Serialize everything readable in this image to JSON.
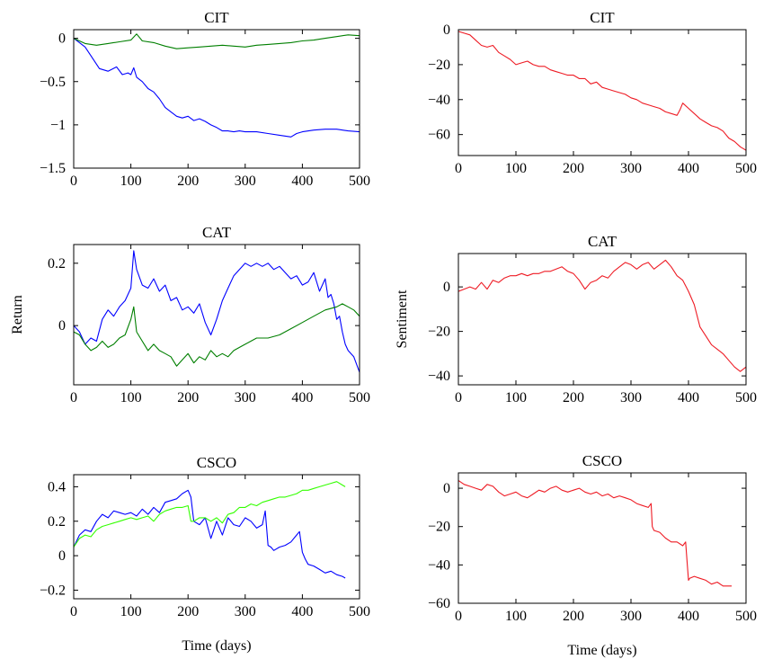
{
  "figure": {
    "xlabel": "Time (days)"
  },
  "colors": {
    "blue": "#0000ff",
    "dark_green": "#007f00",
    "light_green": "#33ff00",
    "red": "#ee1b24"
  },
  "chart_data": [
    {
      "type": "line",
      "title": "CIT",
      "xlabel": "",
      "ylabel": "",
      "xlim": [
        0,
        500
      ],
      "ylim": [
        -1.5,
        0.1
      ],
      "xticks": [
        "0",
        "100",
        "200",
        "300",
        "400",
        "500"
      ],
      "yticks": [
        {
          "v": 0,
          "label": "0"
        },
        {
          "v": -0.5,
          "label": "−0.5"
        },
        {
          "v": -1,
          "label": "−1"
        },
        {
          "v": -1.5,
          "label": "−1.5"
        }
      ],
      "series": [
        {
          "color": "#0000ff",
          "x": [
            0,
            10,
            20,
            30,
            45,
            60,
            75,
            85,
            95,
            100,
            105,
            110,
            120,
            130,
            140,
            150,
            160,
            170,
            180,
            190,
            200,
            210,
            220,
            230,
            240,
            250,
            260,
            270,
            280,
            290,
            300,
            320,
            340,
            360,
            380,
            390,
            400,
            420,
            440,
            460,
            480,
            500
          ],
          "y": [
            0,
            -0.05,
            -0.1,
            -0.2,
            -0.35,
            -0.38,
            -0.33,
            -0.42,
            -0.4,
            -0.42,
            -0.34,
            -0.45,
            -0.5,
            -0.58,
            -0.62,
            -0.7,
            -0.8,
            -0.85,
            -0.9,
            -0.92,
            -0.9,
            -0.95,
            -0.93,
            -0.96,
            -1,
            -1.03,
            -1.07,
            -1.07,
            -1.08,
            -1.07,
            -1.08,
            -1.08,
            -1.1,
            -1.12,
            -1.14,
            -1.1,
            -1.08,
            -1.06,
            -1.05,
            -1.05,
            -1.07,
            -1.08
          ]
        },
        {
          "color": "#007f00",
          "x": [
            0,
            20,
            40,
            60,
            80,
            100,
            110,
            120,
            140,
            160,
            180,
            200,
            220,
            240,
            260,
            280,
            300,
            320,
            340,
            360,
            380,
            400,
            420,
            440,
            460,
            480,
            500
          ],
          "y": [
            0,
            -0.06,
            -0.08,
            -0.06,
            -0.04,
            -0.02,
            0.05,
            -0.03,
            -0.05,
            -0.09,
            -0.12,
            -0.11,
            -0.1,
            -0.09,
            -0.08,
            -0.09,
            -0.1,
            -0.08,
            -0.07,
            -0.06,
            -0.05,
            -0.03,
            -0.02,
            0,
            0.02,
            0.04,
            0.03
          ]
        }
      ]
    },
    {
      "type": "line",
      "title": "CIT",
      "xlabel": "",
      "ylabel": "",
      "xlim": [
        0,
        500
      ],
      "ylim": [
        -72,
        0
      ],
      "xticks": [
        "0",
        "100",
        "200",
        "300",
        "400",
        "500"
      ],
      "yticks": [
        {
          "v": 0,
          "label": "0"
        },
        {
          "v": -20,
          "label": "−20"
        },
        {
          "v": -40,
          "label": "−40"
        },
        {
          "v": -60,
          "label": "−60"
        }
      ],
      "series": [
        {
          "color": "#ee1b24",
          "x": [
            0,
            10,
            20,
            30,
            40,
            50,
            60,
            70,
            80,
            90,
            100,
            110,
            120,
            130,
            140,
            150,
            160,
            170,
            180,
            190,
            200,
            210,
            220,
            230,
            240,
            250,
            260,
            270,
            280,
            290,
            300,
            310,
            320,
            330,
            340,
            350,
            360,
            370,
            380,
            385,
            390,
            400,
            410,
            420,
            430,
            440,
            450,
            460,
            470,
            480,
            490,
            500
          ],
          "y": [
            -1,
            -2,
            -3,
            -6,
            -9,
            -10,
            -9,
            -13,
            -15,
            -17,
            -20,
            -19,
            -18,
            -20,
            -21,
            -21,
            -23,
            -24,
            -25,
            -26,
            -26,
            -28,
            -28,
            -31,
            -30,
            -33,
            -34,
            -35,
            -36,
            -37,
            -39,
            -40,
            -42,
            -43,
            -44,
            -45,
            -47,
            -48,
            -49,
            -46,
            -42,
            -45,
            -48,
            -51,
            -53,
            -55,
            -56,
            -58,
            -62,
            -64,
            -67,
            -69
          ]
        }
      ]
    },
    {
      "type": "line",
      "title": "CAT",
      "xlabel": "",
      "ylabel": "Return",
      "xlim": [
        0,
        500
      ],
      "ylim": [
        -0.19,
        0.26
      ],
      "xticks": [
        "0",
        "100",
        "200",
        "300",
        "400",
        "500"
      ],
      "yticks": [
        {
          "v": 0,
          "label": "0"
        },
        {
          "v": 0.2,
          "label": "0.2"
        }
      ],
      "series": [
        {
          "color": "#0000ff",
          "x": [
            0,
            10,
            20,
            30,
            40,
            50,
            60,
            70,
            80,
            90,
            100,
            105,
            110,
            120,
            130,
            140,
            150,
            160,
            170,
            180,
            190,
            200,
            210,
            220,
            230,
            240,
            250,
            260,
            270,
            280,
            290,
            300,
            310,
            320,
            330,
            340,
            350,
            360,
            370,
            380,
            390,
            400,
            410,
            420,
            430,
            440,
            445,
            450,
            455,
            460,
            465,
            470,
            475,
            480,
            490,
            500
          ],
          "y": [
            0,
            -0.02,
            -0.06,
            -0.04,
            -0.05,
            0.02,
            0.05,
            0.03,
            0.06,
            0.08,
            0.12,
            0.24,
            0.18,
            0.13,
            0.12,
            0.15,
            0.11,
            0.13,
            0.08,
            0.09,
            0.05,
            0.06,
            0.04,
            0.07,
            0.01,
            -0.03,
            0.02,
            0.08,
            0.12,
            0.16,
            0.18,
            0.2,
            0.19,
            0.2,
            0.19,
            0.2,
            0.18,
            0.19,
            0.17,
            0.15,
            0.16,
            0.13,
            0.14,
            0.17,
            0.11,
            0.15,
            0.09,
            0.1,
            0.07,
            0.02,
            0.03,
            -0.02,
            -0.06,
            -0.08,
            -0.1,
            -0.15
          ]
        },
        {
          "color": "#007f00",
          "x": [
            0,
            10,
            20,
            30,
            40,
            50,
            60,
            70,
            80,
            90,
            100,
            105,
            110,
            120,
            130,
            140,
            150,
            160,
            170,
            180,
            190,
            200,
            210,
            220,
            230,
            240,
            250,
            260,
            270,
            280,
            290,
            300,
            320,
            340,
            360,
            380,
            400,
            420,
            440,
            460,
            470,
            480,
            490,
            500
          ],
          "y": [
            -0.02,
            -0.03,
            -0.06,
            -0.08,
            -0.07,
            -0.05,
            -0.07,
            -0.06,
            -0.04,
            -0.03,
            0.02,
            0.06,
            -0.02,
            -0.05,
            -0.08,
            -0.06,
            -0.08,
            -0.09,
            -0.1,
            -0.13,
            -0.11,
            -0.09,
            -0.12,
            -0.1,
            -0.11,
            -0.08,
            -0.1,
            -0.09,
            -0.1,
            -0.08,
            -0.07,
            -0.06,
            -0.04,
            -0.04,
            -0.03,
            -0.01,
            0.01,
            0.03,
            0.05,
            0.06,
            0.07,
            0.06,
            0.05,
            0.03
          ]
        }
      ]
    },
    {
      "type": "line",
      "title": "CAT",
      "xlabel": "",
      "ylabel": "Sentiment",
      "xlim": [
        0,
        500
      ],
      "ylim": [
        -44,
        15
      ],
      "xticks": [
        "0",
        "100",
        "200",
        "300",
        "400",
        "500"
      ],
      "yticks": [
        {
          "v": 0,
          "label": "0"
        },
        {
          "v": -20,
          "label": "−20"
        },
        {
          "v": -40,
          "label": "−40"
        }
      ],
      "series": [
        {
          "color": "#ee1b24",
          "x": [
            0,
            10,
            20,
            30,
            40,
            50,
            60,
            70,
            80,
            90,
            100,
            110,
            120,
            130,
            140,
            150,
            160,
            170,
            180,
            190,
            200,
            210,
            220,
            230,
            240,
            250,
            260,
            270,
            280,
            290,
            300,
            310,
            320,
            330,
            340,
            350,
            360,
            370,
            380,
            390,
            400,
            410,
            420,
            430,
            440,
            450,
            460,
            470,
            480,
            490,
            500
          ],
          "y": [
            -2,
            -1,
            0,
            -1,
            2,
            -1,
            3,
            2,
            4,
            5,
            5,
            6,
            5,
            6,
            6,
            7,
            7,
            8,
            9,
            7,
            6,
            3,
            -1,
            2,
            3,
            5,
            4,
            7,
            9,
            11,
            10,
            8,
            10,
            11,
            8,
            10,
            12,
            9,
            5,
            3,
            -2,
            -8,
            -18,
            -22,
            -26,
            -28,
            -30,
            -33,
            -36,
            -38,
            -36
          ]
        }
      ]
    },
    {
      "type": "line",
      "title": "CSCO",
      "xlabel": "Time (days)",
      "ylabel": "",
      "xlim": [
        0,
        500
      ],
      "ylim": [
        -0.25,
        0.47
      ],
      "xticks": [
        "0",
        "100",
        "200",
        "300",
        "400",
        "500"
      ],
      "yticks": [
        {
          "v": 0.4,
          "label": "0.4"
        },
        {
          "v": 0.2,
          "label": "0.2"
        },
        {
          "v": 0,
          "label": "0"
        },
        {
          "v": -0.2,
          "label": "−0.2"
        }
      ],
      "series": [
        {
          "color": "#0000ff",
          "x": [
            0,
            10,
            20,
            30,
            40,
            50,
            60,
            70,
            80,
            90,
            100,
            110,
            120,
            130,
            140,
            150,
            160,
            170,
            180,
            190,
            200,
            205,
            210,
            220,
            230,
            240,
            250,
            260,
            270,
            280,
            290,
            300,
            310,
            320,
            330,
            335,
            340,
            345,
            350,
            360,
            370,
            380,
            390,
            395,
            400,
            405,
            410,
            420,
            430,
            440,
            450,
            460,
            470,
            475
          ],
          "y": [
            0.05,
            0.12,
            0.15,
            0.14,
            0.2,
            0.24,
            0.22,
            0.26,
            0.25,
            0.24,
            0.25,
            0.23,
            0.27,
            0.24,
            0.28,
            0.25,
            0.31,
            0.32,
            0.33,
            0.36,
            0.38,
            0.34,
            0.2,
            0.18,
            0.22,
            0.1,
            0.2,
            0.12,
            0.22,
            0.18,
            0.17,
            0.22,
            0.2,
            0.16,
            0.18,
            0.26,
            0.06,
            0.05,
            0.03,
            0.05,
            0.06,
            0.08,
            0.12,
            0.14,
            0.02,
            -0.02,
            -0.05,
            -0.06,
            -0.08,
            -0.1,
            -0.09,
            -0.11,
            -0.12,
            -0.13
          ]
        },
        {
          "color": "#33ff00",
          "x": [
            0,
            10,
            20,
            30,
            40,
            50,
            60,
            70,
            80,
            90,
            100,
            110,
            120,
            130,
            140,
            150,
            160,
            170,
            180,
            190,
            200,
            205,
            210,
            220,
            230,
            240,
            250,
            260,
            270,
            280,
            290,
            300,
            310,
            320,
            330,
            340,
            350,
            360,
            370,
            380,
            390,
            400,
            410,
            420,
            430,
            440,
            450,
            460,
            470,
            475
          ],
          "y": [
            0.05,
            0.1,
            0.12,
            0.11,
            0.15,
            0.17,
            0.18,
            0.19,
            0.2,
            0.21,
            0.22,
            0.21,
            0.22,
            0.23,
            0.2,
            0.24,
            0.26,
            0.27,
            0.28,
            0.28,
            0.29,
            0.2,
            0.2,
            0.22,
            0.22,
            0.2,
            0.22,
            0.19,
            0.24,
            0.25,
            0.28,
            0.28,
            0.3,
            0.29,
            0.31,
            0.32,
            0.33,
            0.34,
            0.34,
            0.35,
            0.36,
            0.38,
            0.38,
            0.39,
            0.4,
            0.41,
            0.42,
            0.43,
            0.41,
            0.4
          ]
        }
      ]
    },
    {
      "type": "line",
      "title": "CSCO",
      "xlabel": "Time (days)",
      "ylabel": "",
      "xlim": [
        0,
        500
      ],
      "ylim": [
        -60,
        8
      ],
      "xticks": [
        "0",
        "100",
        "200",
        "300",
        "400",
        "500"
      ],
      "yticks": [
        {
          "v": 0,
          "label": "0"
        },
        {
          "v": -20,
          "label": "−20"
        },
        {
          "v": -40,
          "label": "−40"
        },
        {
          "v": -60,
          "label": "−60"
        }
      ],
      "series": [
        {
          "color": "#ee1b24",
          "x": [
            0,
            10,
            20,
            30,
            40,
            50,
            60,
            70,
            80,
            90,
            100,
            110,
            120,
            130,
            140,
            150,
            160,
            170,
            180,
            190,
            200,
            210,
            220,
            230,
            240,
            250,
            260,
            270,
            280,
            290,
            300,
            310,
            320,
            330,
            335,
            337,
            340,
            350,
            360,
            370,
            380,
            390,
            395,
            398,
            400,
            402,
            410,
            420,
            430,
            440,
            450,
            460,
            470,
            475
          ],
          "y": [
            4,
            2,
            1,
            0,
            -1,
            2,
            1,
            -2,
            -4,
            -3,
            -2,
            -4,
            -5,
            -3,
            -1,
            -2,
            0,
            1,
            -1,
            -2,
            -1,
            0,
            -2,
            -3,
            -2,
            -4,
            -3,
            -5,
            -4,
            -5,
            -6,
            -8,
            -9,
            -10,
            -8,
            -20,
            -22,
            -23,
            -26,
            -28,
            -28,
            -30,
            -28,
            -40,
            -48,
            -47,
            -46,
            -47,
            -48,
            -50,
            -49,
            -51,
            -51,
            -51
          ]
        }
      ]
    }
  ]
}
